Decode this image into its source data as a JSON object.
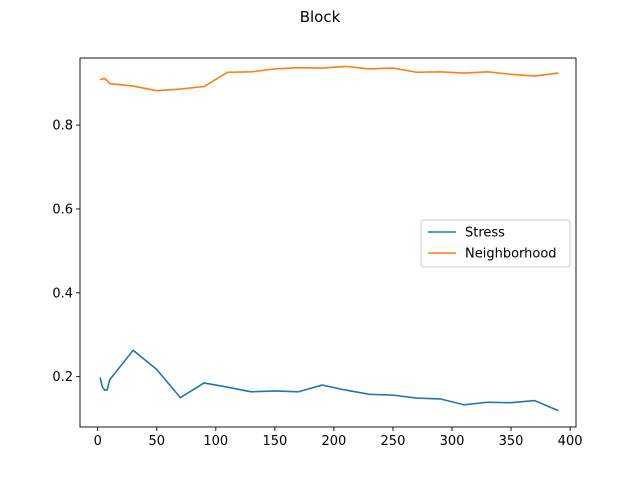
{
  "chart_data": {
    "type": "line",
    "title": "Block",
    "xlabel": "",
    "ylabel": "",
    "xlim": [
      -15,
      405
    ],
    "ylim": [
      0.08,
      0.96
    ],
    "xticks": [
      0,
      50,
      100,
      150,
      200,
      250,
      300,
      350,
      400
    ],
    "yticks": [
      0.2,
      0.4,
      0.6,
      0.8
    ],
    "xtick_labels": [
      "0",
      "50",
      "100",
      "150",
      "200",
      "250",
      "300",
      "350",
      "400"
    ],
    "ytick_labels": [
      "0.2",
      "0.4",
      "0.6",
      "0.8"
    ],
    "grid": false,
    "legend_position": "center-right",
    "series": [
      {
        "name": "Stress",
        "color": "#1f77b4",
        "x": [
          2,
          4,
          6,
          8,
          10,
          30,
          50,
          70,
          90,
          110,
          130,
          150,
          170,
          190,
          210,
          230,
          250,
          270,
          290,
          310,
          330,
          350,
          370,
          390
        ],
        "y": [
          0.198,
          0.175,
          0.168,
          0.168,
          0.192,
          0.263,
          0.217,
          0.15,
          0.185,
          0.175,
          0.164,
          0.166,
          0.164,
          0.18,
          0.168,
          0.158,
          0.156,
          0.149,
          0.147,
          0.133,
          0.139,
          0.138,
          0.143,
          0.119
        ]
      },
      {
        "name": "Neighborhood",
        "color": "#ff7f0e",
        "x": [
          2,
          4,
          6,
          8,
          10,
          30,
          50,
          70,
          90,
          110,
          130,
          150,
          170,
          190,
          210,
          230,
          250,
          270,
          290,
          310,
          330,
          350,
          370,
          390
        ],
        "y": [
          0.908,
          0.91,
          0.911,
          0.906,
          0.899,
          0.893,
          0.882,
          0.886,
          0.892,
          0.926,
          0.927,
          0.934,
          0.937,
          0.936,
          0.94,
          0.934,
          0.936,
          0.926,
          0.927,
          0.924,
          0.927,
          0.921,
          0.917,
          0.924
        ]
      }
    ]
  }
}
